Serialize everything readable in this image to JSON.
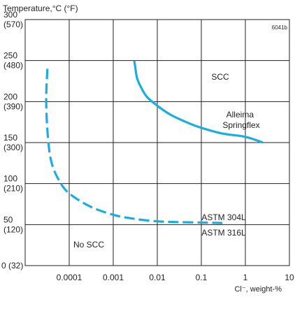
{
  "chart_data": {
    "type": "line",
    "title": "",
    "ylabel": "Temperature,°C (°F)",
    "xlabel": "Cl⁻, weight-%",
    "figure_id": "6041b",
    "x_scale": "log",
    "xlim": [
      1e-05,
      10
    ],
    "ylim": [
      0,
      300
    ],
    "grid": true,
    "x_ticks": [
      {
        "value": 0.0001,
        "label": "0.0001"
      },
      {
        "value": 0.001,
        "label": "0.001"
      },
      {
        "value": 0.01,
        "label": "0.01"
      },
      {
        "value": 0.1,
        "label": "0.1"
      },
      {
        "value": 1,
        "label": "1"
      },
      {
        "value": 10,
        "label": "10"
      }
    ],
    "y_ticks": [
      {
        "value": 0,
        "label": "0 (32)"
      },
      {
        "value": 50,
        "label": "50",
        "label2": "(120)"
      },
      {
        "value": 100,
        "label": "100",
        "label2": "(210)"
      },
      {
        "value": 150,
        "label": "150",
        "label2": "(300)"
      },
      {
        "value": 200,
        "label": "200",
        "label2": "(390)"
      },
      {
        "value": 250,
        "label": "250",
        "label2": "(480)"
      },
      {
        "value": 300,
        "label": "300",
        "label2": "(570)"
      }
    ],
    "series": [
      {
        "name": "Alleima Springflex",
        "label_lines": [
          "Alleima",
          "Springflex"
        ],
        "style": "solid",
        "color": "#1aaee0",
        "points": [
          [
            0.003,
            250
          ],
          [
            0.0032,
            240
          ],
          [
            0.0035,
            228
          ],
          [
            0.0045,
            215
          ],
          [
            0.006,
            205
          ],
          [
            0.01,
            195
          ],
          [
            0.02,
            184
          ],
          [
            0.05,
            174
          ],
          [
            0.1,
            168
          ],
          [
            0.3,
            161
          ],
          [
            1,
            157
          ],
          [
            2.5,
            150
          ]
        ]
      },
      {
        "name": "ASTM 304L / ASTM 316L",
        "style": "dashed",
        "color": "#1aaee0",
        "points": [
          [
            3.2e-05,
            240
          ],
          [
            3e-05,
            200
          ],
          [
            3.3e-05,
            155
          ],
          [
            4e-05,
            125
          ],
          [
            6e-05,
            103
          ],
          [
            0.0001,
            88
          ],
          [
            0.0003,
            72
          ],
          [
            0.001,
            62
          ],
          [
            0.003,
            57
          ],
          [
            0.01,
            54
          ],
          [
            0.03,
            53
          ],
          [
            0.1,
            52.5
          ],
          [
            0.3,
            52
          ]
        ]
      }
    ],
    "annotations": [
      {
        "text": "SCC",
        "x": 0.3,
        "y": 232
      },
      {
        "text": "No SCC",
        "x": 0.0003,
        "y": 26
      },
      {
        "text": "ASTM 304L",
        "x": 0.3,
        "y": 60
      },
      {
        "text": "ASTM 316L",
        "x": 0.3,
        "y": 41
      }
    ],
    "colors": {
      "grid": "#231f20",
      "curve": "#1aaee0",
      "text": "#231f20"
    }
  }
}
